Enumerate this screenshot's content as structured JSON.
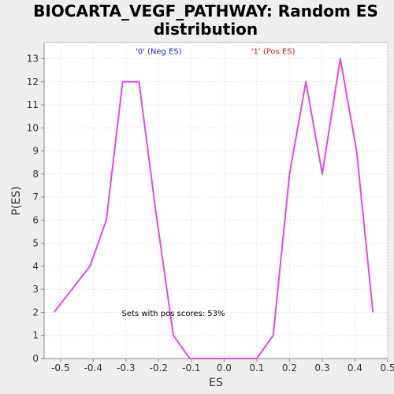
{
  "chart_data": {
    "type": "line",
    "title_lines": [
      "BIOCARTA_VEGF_PATHWAY: Random ES",
      "distribution"
    ],
    "xlabel": "ES",
    "ylabel": "P(ES)",
    "xlim": [
      -0.55,
      0.5
    ],
    "ylim": [
      0,
      13.7
    ],
    "xticks": [
      -0.5,
      -0.4,
      -0.3,
      -0.2,
      -0.1,
      0.0,
      0.1,
      0.2,
      0.3,
      0.4,
      0.5
    ],
    "xtick_labels": [
      "-0.5",
      "-0.4",
      "-0.3",
      "-0.2",
      "-0.1",
      "0.0",
      "0.1",
      "0.2",
      "0.3",
      "0.4",
      "0.5"
    ],
    "yticks": [
      0,
      1,
      2,
      3,
      4,
      5,
      6,
      7,
      8,
      9,
      10,
      11,
      12,
      13
    ],
    "ytick_labels": [
      "0",
      "1",
      "2",
      "3",
      "4",
      "5",
      "6",
      "7",
      "8",
      "9",
      "10",
      "11",
      "12",
      "13"
    ],
    "grid": true,
    "series": [
      {
        "color": "#ee44ee",
        "x": [
          -0.52,
          -0.41,
          -0.36,
          -0.31,
          -0.26,
          -0.21,
          -0.155,
          -0.105,
          -0.05,
          0.0,
          0.05,
          0.1,
          0.15,
          0.2,
          0.25,
          0.3,
          0.355,
          0.405,
          0.455
        ],
        "y": [
          2,
          4,
          6,
          12,
          12,
          6.5,
          1,
          0,
          0,
          0,
          0,
          0,
          1,
          8,
          12,
          8,
          13,
          9,
          2
        ]
      }
    ],
    "annotations": [
      {
        "text": "'0' (Neg ES)",
        "color": "#2222cc",
        "x": -0.2,
        "y": 13.2
      },
      {
        "text": "'1' (Pos ES)",
        "color": "#cc2222",
        "x": 0.15,
        "y": 13.2
      },
      {
        "text": "Sets with pos scores: 53%",
        "color": "#000000",
        "x": -0.155,
        "y": 1.85
      }
    ]
  }
}
